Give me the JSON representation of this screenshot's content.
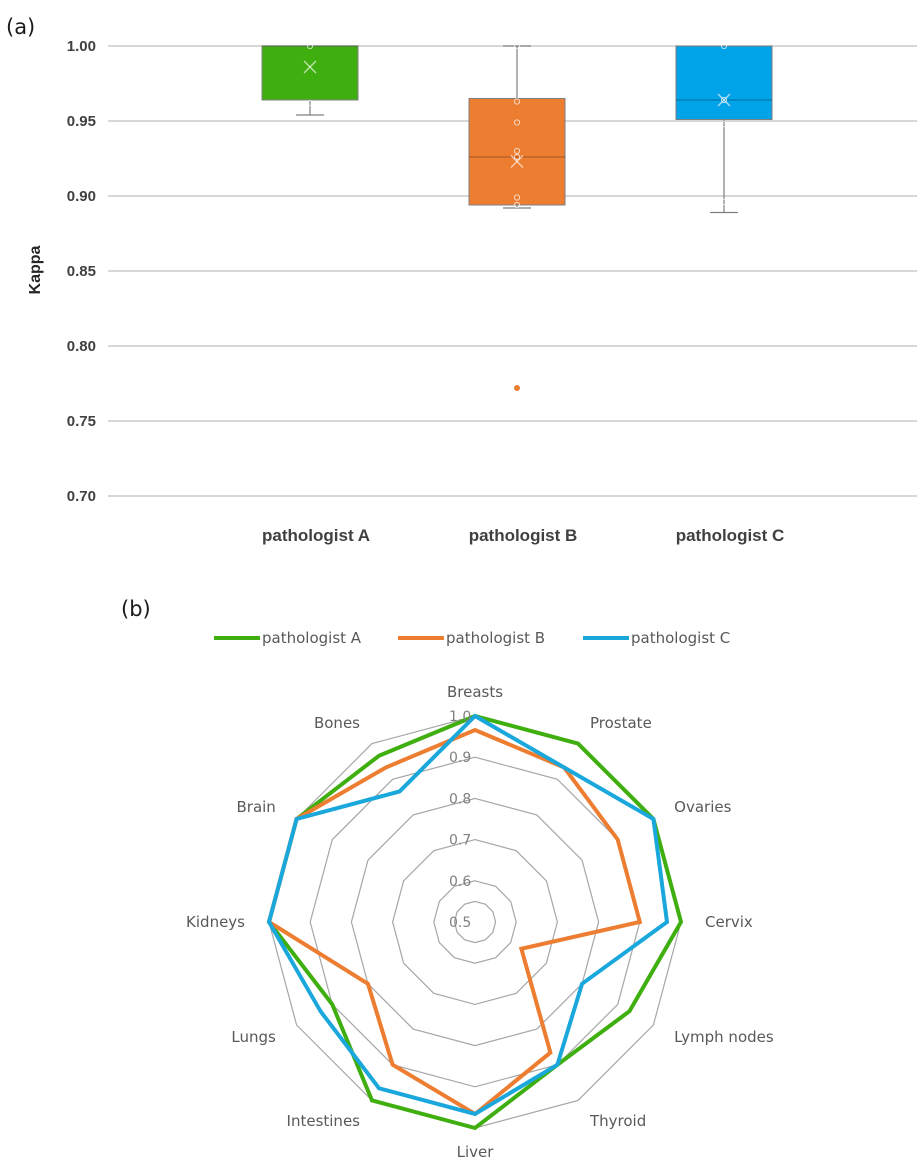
{
  "chart_data": [
    {
      "type": "box",
      "panel_label": "(a)",
      "ylabel": "Kappa",
      "ylim": [
        0.7,
        1.0
      ],
      "yticks": [
        "0.70",
        "0.75",
        "0.80",
        "0.85",
        "0.90",
        "0.95",
        "1.00"
      ],
      "grid": true,
      "categories": [
        "pathologist A",
        "pathologist B",
        "pathologist C"
      ],
      "colors": [
        "#3fae0f",
        "#ed7d31",
        "#00a2e8"
      ],
      "series": [
        {
          "q1": 0.964,
          "median": 1.0,
          "q3": 1.0,
          "mean": 0.986,
          "whisker_low": 0.954,
          "whisker_high": 1.0,
          "points": [
            1.0,
            0.962
          ],
          "outliers": []
        },
        {
          "q1": 0.894,
          "median": 0.926,
          "q3": 0.965,
          "mean": 0.923,
          "whisker_low": 0.892,
          "whisker_high": 1.0,
          "points": [
            1.0,
            0.963,
            0.949,
            0.93,
            0.926,
            0.899,
            0.894
          ],
          "outliers": [
            0.772
          ]
        },
        {
          "q1": 0.951,
          "median": 0.964,
          "q3": 1.0,
          "mean": 0.964,
          "whisker_low": 0.889,
          "whisker_high": 1.0,
          "points": [
            1.0,
            0.964,
            0.948,
            0.896
          ],
          "outliers": []
        }
      ]
    },
    {
      "type": "radar",
      "panel_label": "(b)",
      "axes": [
        "Breasts",
        "Prostate",
        "Ovaries",
        "Cervix",
        "Lymph nodes",
        "Thyroid",
        "Liver",
        "Intestines",
        "Lungs",
        "Kidneys",
        "Brain",
        "Bones"
      ],
      "rlim": [
        0.5,
        1.0
      ],
      "rticks": [
        "0.5",
        "0.6",
        "0.7",
        "0.8",
        "0.9",
        "1.0"
      ],
      "legend_position": "top",
      "series": [
        {
          "name": "pathologist A",
          "color": "#3fae0f",
          "values": [
            1.0,
            1.0,
            1.0,
            1.0,
            0.933,
            0.9,
            1.0,
            1.0,
            0.9,
            1.0,
            1.0,
            0.966
          ]
        },
        {
          "name": "pathologist B",
          "color": "#ed7d31",
          "values": [
            0.966,
            0.933,
            0.9,
            0.9,
            0.63,
            0.866,
            0.966,
            0.9,
            0.8,
            1.0,
            1.0,
            0.933
          ]
        },
        {
          "name": "pathologist C",
          "color": "#1aa7dc",
          "values": [
            1.0,
            0.933,
            1.0,
            0.966,
            0.8,
            0.9,
            0.966,
            0.966,
            0.933,
            1.0,
            1.0,
            0.866
          ]
        }
      ]
    }
  ]
}
